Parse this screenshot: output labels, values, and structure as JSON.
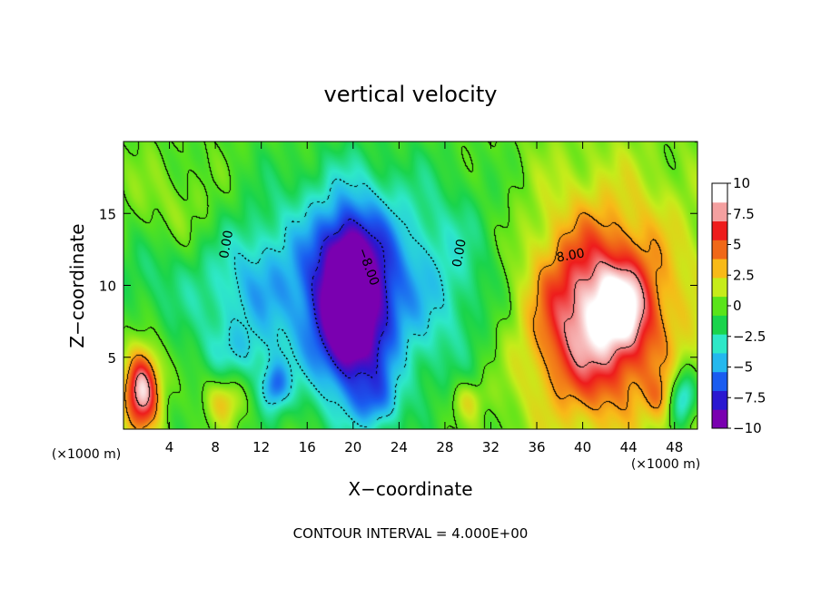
{
  "chart_data": {
    "type": "heatmap",
    "title": "vertical velocity",
    "xlabel": "X−coordinate",
    "ylabel": "Z−coordinate",
    "x_unit": "(×1000 m)",
    "xlim": [
      0,
      50
    ],
    "ylim": [
      0,
      20
    ],
    "x_ticks": [
      "4",
      "8",
      "12",
      "16",
      "20",
      "24",
      "28",
      "32",
      "36",
      "40",
      "44",
      "48"
    ],
    "x_tick_values": [
      4,
      8,
      12,
      16,
      20,
      24,
      28,
      32,
      36,
      40,
      44,
      48
    ],
    "y_ticks": [
      "5",
      "10",
      "15"
    ],
    "y_tick_values": [
      5,
      10,
      15
    ],
    "colorbar": {
      "min": -10,
      "max": 10,
      "labels": [
        "10",
        "7.5",
        "5",
        "2.5",
        "0",
        "−2.5",
        "−5",
        "−7.5",
        "−10"
      ],
      "label_values": [
        10,
        7.5,
        5,
        2.5,
        0,
        -2.5,
        -5,
        -7.5,
        -10
      ],
      "colors": [
        "#7a00b0",
        "#2a18d0",
        "#1a5cf0",
        "#24b8ee",
        "#2ee8c8",
        "#1ad44c",
        "#5ae41a",
        "#c6ec1a",
        "#f8ba18",
        "#f06818",
        "#ee1c1c",
        "#f4a0a0",
        "#ffffff"
      ]
    },
    "contour_interval": "CONTOUR INTERVAL = 4.000E+00",
    "contour_labels": [
      {
        "text": "0.00",
        "x": 9.3,
        "z": 12.8
      },
      {
        "text": "−8.00",
        "x": 21.0,
        "z": 11.2
      },
      {
        "text": "0.00",
        "x": 29.6,
        "z": 12.2
      },
      {
        "text": "8.00",
        "x": 39.0,
        "z": 11.8
      }
    ],
    "field_components": [
      {
        "x": 23.0,
        "z": 10.0,
        "sx": 12.0,
        "sz": 5.5,
        "amp": -5.0
      },
      {
        "x": 19.8,
        "z": 8.8,
        "sx": 2.4,
        "sz": 4.5,
        "amp": -9.0
      },
      {
        "x": 19.6,
        "z": 9.0,
        "sx": 0.9,
        "sz": 2.6,
        "amp": -6.0
      },
      {
        "x": 11.0,
        "z": 10.0,
        "sx": 3.0,
        "sz": 3.0,
        "amp": -1.8
      },
      {
        "x": 13.2,
        "z": 3.0,
        "sx": 0.9,
        "sz": 1.2,
        "amp": -5.0
      },
      {
        "x": 22.0,
        "z": 1.8,
        "sx": 1.4,
        "sz": 1.5,
        "amp": -3.5
      },
      {
        "x": 40.5,
        "z": 9.0,
        "sx": 6.5,
        "sz": 6.0,
        "amp": 6.0
      },
      {
        "x": 41.0,
        "z": 7.5,
        "sx": 3.4,
        "sz": 4.0,
        "amp": 5.5
      },
      {
        "x": 43.5,
        "z": 8.5,
        "sx": 1.5,
        "sz": 1.8,
        "amp": 4.0
      },
      {
        "x": 1.6,
        "z": 2.8,
        "sx": 1.1,
        "sz": 2.0,
        "amp": 10.0
      },
      {
        "x": 48.6,
        "z": 2.2,
        "sx": 0.9,
        "sz": 1.4,
        "amp": -6.0
      },
      {
        "x": 47.0,
        "z": 2.2,
        "sx": 1.0,
        "sz": 1.2,
        "amp": 3.0
      },
      {
        "x": 8.8,
        "z": 2.0,
        "sx": 1.2,
        "sz": 1.2,
        "amp": 3.5
      },
      {
        "x": 2.0,
        "z": 11.0,
        "sx": 2.0,
        "sz": 2.0,
        "amp": -1.2
      },
      {
        "x": 30.0,
        "z": 2.0,
        "sx": 1.0,
        "sz": 1.0,
        "amp": 2.5
      },
      {
        "x": 5.0,
        "z": 15.0,
        "sx": 4.0,
        "sz": 2.5,
        "amp": 1.6
      },
      {
        "x": 10.0,
        "z": 5.5,
        "sx": 2.0,
        "sz": 1.2,
        "amp": -1.5
      }
    ]
  }
}
